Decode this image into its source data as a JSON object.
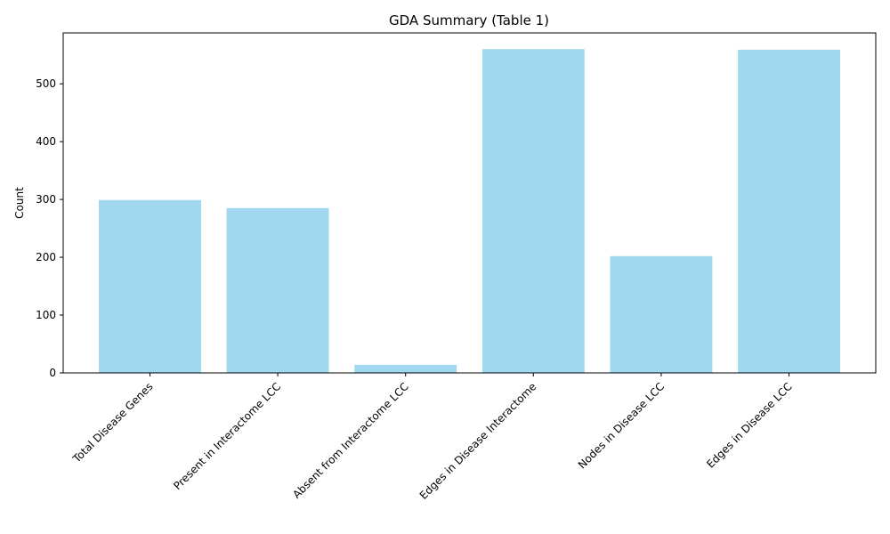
{
  "chart_data": {
    "type": "bar",
    "title": "GDA Summary (Table 1)",
    "xlabel": "",
    "ylabel": "Count",
    "categories": [
      "Total Disease Genes",
      "Present in Interactome LCC",
      "Absent from Interactome LCC",
      "Edges in Disease Interactome",
      "Nodes in Disease LCC",
      "Edges in Disease LCC"
    ],
    "values": [
      299,
      285,
      14,
      560,
      202,
      559
    ],
    "ylim": [
      0,
      588
    ],
    "yticks": [
      0,
      100,
      200,
      300,
      400,
      500
    ],
    "bar_color": "#87CEEB",
    "bar_opacity": 0.8,
    "grid": false,
    "legend": "none"
  }
}
